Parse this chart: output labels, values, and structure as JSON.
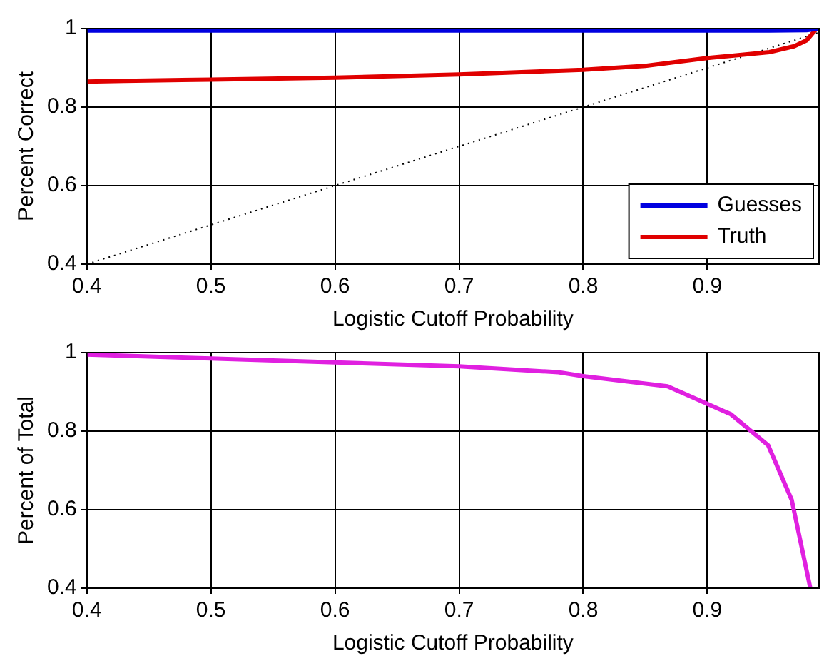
{
  "chart_data": [
    {
      "type": "line",
      "xlabel": "Logistic Cutoff Probability",
      "ylabel": "Percent Correct",
      "xlim": [
        0.4,
        0.99
      ],
      "ylim": [
        0.4,
        1
      ],
      "xticks": [
        0.4,
        0.5,
        0.6,
        0.7,
        0.8,
        0.9
      ],
      "yticks": [
        0.4,
        0.6,
        0.8,
        1
      ],
      "grid": true,
      "legend": "bottom right",
      "marker": "none",
      "series": [
        {
          "name": "Guesses",
          "color": "#0000e0",
          "x": [
            0.4,
            0.5,
            0.6,
            0.7,
            0.8,
            0.9,
            0.95,
            0.98,
            0.99
          ],
          "values": [
            0.995,
            0.995,
            0.995,
            0.995,
            0.995,
            0.995,
            0.995,
            0.996,
            1.0
          ]
        },
        {
          "name": "Truth",
          "color": "#e00000",
          "x": [
            0.4,
            0.43,
            0.5,
            0.6,
            0.7,
            0.8,
            0.85,
            0.9,
            0.95,
            0.97,
            0.98,
            0.988
          ],
          "values": [
            0.865,
            0.867,
            0.87,
            0.875,
            0.883,
            0.895,
            0.905,
            0.925,
            0.94,
            0.955,
            0.97,
            1.0
          ]
        },
        {
          "color": "#000000",
          "line_style": "dotted",
          "x": [
            0.4,
            0.99
          ],
          "values": [
            0.4,
            0.99
          ]
        }
      ]
    },
    {
      "type": "line",
      "xlabel": "Logistic Cutoff Probability",
      "ylabel": "Percent of Total",
      "xlim": [
        0.4,
        0.99
      ],
      "ylim": [
        0.4,
        1
      ],
      "xticks": [
        0.4,
        0.5,
        0.6,
        0.7,
        0.8,
        0.9
      ],
      "yticks": [
        0.4,
        0.6,
        0.8,
        1
      ],
      "grid": true,
      "marker": "none",
      "series": [
        {
          "color": "#e020e0",
          "x": [
            0.4,
            0.5,
            0.6,
            0.7,
            0.78,
            0.8,
            0.868,
            0.919,
            0.949,
            0.968,
            0.983
          ],
          "values": [
            0.995,
            0.985,
            0.975,
            0.965,
            0.95,
            0.94,
            0.914,
            0.843,
            0.764,
            0.625,
            0.4
          ]
        }
      ]
    }
  ]
}
